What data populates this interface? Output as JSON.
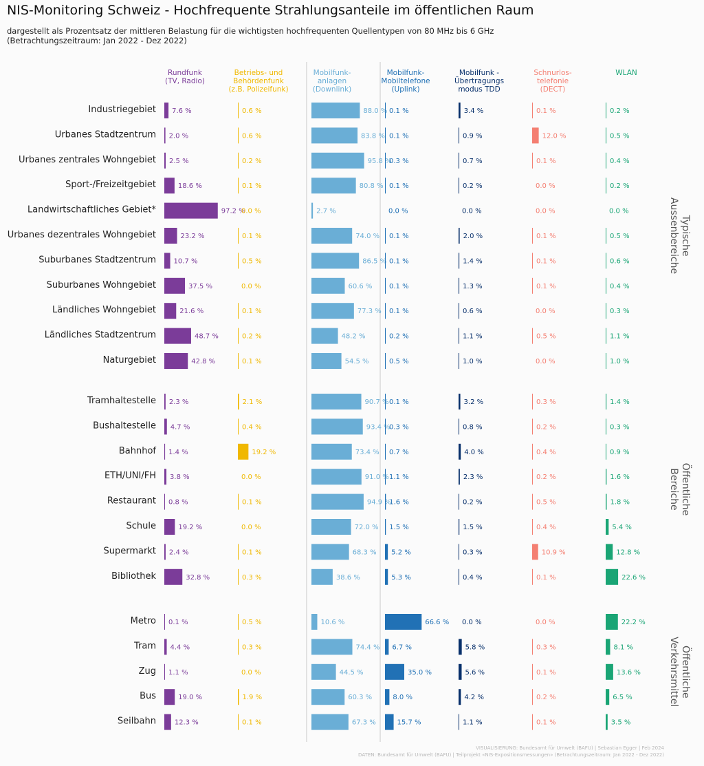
{
  "title": "NIS-Monitoring Schweiz - Hochfrequente Strahlungsanteile im öffentlichen Raum",
  "subtitle_lines": [
    "dargestellt als Prozentsatz der mittleren Belastung für die wichtigsten hochfrequenten Quellentypen von 80 MHz bis 6 GHz",
    "(Betrachtungszeitraum: Jan 2022 - Dez 2022)"
  ],
  "footer": {
    "line1": "VISUALISIERUNG: Bundesamt für Umwelt (BAFU) | Sebastian Egger | Feb 2024",
    "line2": "DATEN: Bundesamt für Umwelt (BAFU) | Teilprojekt «NIS-Expositionsmessungen» (Betrachtungszeitraum: Jan 2022 - Dez 2022)"
  },
  "colors": {
    "rundfunk": "#7b3c99",
    "behoerdenfunk": "#f0b800",
    "downlink": "#6aaed6",
    "uplink": "#2171b5",
    "tdd": "#08306b",
    "dect": "#f47f72",
    "wlan": "#1aa575",
    "separator": "#c8c8c8",
    "group_label": "#555555"
  },
  "chart_data": {
    "type": "bar",
    "unit": "%",
    "series": [
      {
        "key": "rundfunk",
        "name": "Rundfunk\n(TV, Radio)"
      },
      {
        "key": "behoerdenfunk",
        "name": "Betriebs- und\nBehördenfunk\n(z.B. Polizeifunk)"
      },
      {
        "key": "downlink",
        "name": "Mobilfunk-\nanlagen\n(Downlink)"
      },
      {
        "key": "uplink",
        "name": "Mobilfunk-\nMobiltelefone\n(Uplink)"
      },
      {
        "key": "tdd",
        "name": "Mobilfunk -\nÜbertragungs\nmodus TDD"
      },
      {
        "key": "dect",
        "name": "Schnurlos-\ntelefonie\n(DECT)"
      },
      {
        "key": "wlan",
        "name": "WLAN"
      }
    ],
    "groups": [
      {
        "name": "Typische\nAussenbereiche",
        "rows": [
          {
            "label": "Industriegebiet",
            "values": [
              7.6,
              0.6,
              88.0,
              0.1,
              3.4,
              0.1,
              0.2
            ]
          },
          {
            "label": "Urbanes Stadtzentrum",
            "values": [
              2.0,
              0.6,
              83.8,
              0.1,
              0.9,
              12.0,
              0.5
            ]
          },
          {
            "label": "Urbanes zentrales Wohngebiet",
            "values": [
              2.5,
              0.2,
              95.8,
              0.3,
              0.7,
              0.1,
              0.4
            ]
          },
          {
            "label": "Sport-/Freizeitgebiet",
            "values": [
              18.6,
              0.1,
              80.8,
              0.1,
              0.2,
              0.0,
              0.2
            ]
          },
          {
            "label": "Landwirtschaftliches Gebiet*",
            "values": [
              97.2,
              0.0,
              2.7,
              0.0,
              0.0,
              0.0,
              0.0
            ]
          },
          {
            "label": "Urbanes dezentrales Wohngebiet",
            "values": [
              23.2,
              0.1,
              74.0,
              0.1,
              2.0,
              0.1,
              0.5
            ]
          },
          {
            "label": "Suburbanes Stadtzentrum",
            "values": [
              10.7,
              0.5,
              86.5,
              0.1,
              1.4,
              0.1,
              0.6
            ]
          },
          {
            "label": "Suburbanes Wohngebiet",
            "values": [
              37.5,
              0.0,
              60.6,
              0.1,
              1.3,
              0.1,
              0.4
            ]
          },
          {
            "label": "Ländliches Wohngebiet",
            "values": [
              21.6,
              0.1,
              77.3,
              0.1,
              0.6,
              0.0,
              0.3
            ]
          },
          {
            "label": "Ländliches Stadtzentrum",
            "values": [
              48.7,
              0.2,
              48.2,
              0.2,
              1.1,
              0.5,
              1.1
            ]
          },
          {
            "label": "Naturgebiet",
            "values": [
              42.8,
              0.1,
              54.5,
              0.5,
              1.0,
              0.0,
              1.0
            ]
          }
        ]
      },
      {
        "name": "Öffentliche\nBereiche",
        "rows": [
          {
            "label": "Tramhaltestelle",
            "values": [
              2.3,
              2.1,
              90.7,
              0.1,
              3.2,
              0.3,
              1.4
            ]
          },
          {
            "label": "Bushaltestelle",
            "values": [
              4.7,
              0.4,
              93.4,
              0.3,
              0.8,
              0.2,
              0.3
            ]
          },
          {
            "label": "Bahnhof",
            "values": [
              1.4,
              19.2,
              73.4,
              0.7,
              4.0,
              0.4,
              0.9
            ]
          },
          {
            "label": "ETH/UNI/FH",
            "values": [
              3.8,
              0.0,
              91.0,
              1.1,
              2.3,
              0.2,
              1.6
            ]
          },
          {
            "label": "Restaurant",
            "values": [
              0.8,
              0.1,
              94.9,
              1.6,
              0.2,
              0.5,
              1.8
            ]
          },
          {
            "label": "Schule",
            "values": [
              19.2,
              0.0,
              72.0,
              1.5,
              1.5,
              0.4,
              5.4
            ]
          },
          {
            "label": "Supermarkt",
            "values": [
              2.4,
              0.1,
              68.3,
              5.2,
              0.3,
              10.9,
              12.8
            ]
          },
          {
            "label": "Bibliothek",
            "values": [
              32.8,
              0.3,
              38.6,
              5.3,
              0.4,
              0.1,
              22.6
            ]
          }
        ]
      },
      {
        "name": "Öffentliche\nVerkehrsmittel",
        "rows": [
          {
            "label": "Metro",
            "values": [
              0.1,
              0.5,
              10.6,
              66.6,
              0.0,
              0.0,
              22.2
            ]
          },
          {
            "label": "Tram",
            "values": [
              4.4,
              0.3,
              74.4,
              6.7,
              5.8,
              0.3,
              8.1
            ]
          },
          {
            "label": "Zug",
            "values": [
              1.1,
              0.0,
              44.5,
              35.0,
              5.6,
              0.1,
              13.6
            ]
          },
          {
            "label": "Bus",
            "values": [
              19.0,
              1.9,
              60.3,
              8.0,
              4.2,
              0.2,
              6.5
            ]
          },
          {
            "label": "Seilbahn",
            "values": [
              12.3,
              0.1,
              67.3,
              15.7,
              1.1,
              0.1,
              3.5
            ]
          }
        ]
      }
    ]
  }
}
